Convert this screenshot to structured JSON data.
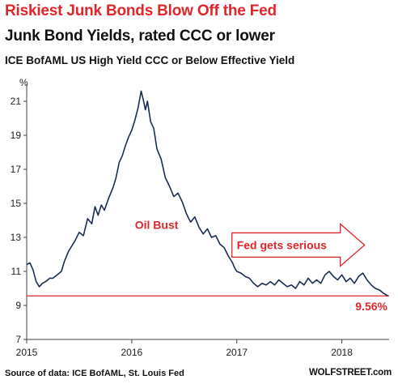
{
  "header": {
    "title": "Riskiest Junk Bonds Blow Off the Fed",
    "subtitle": "Junk Bond Yields, rated CCC or lower",
    "series_title": "ICE BofAML US High Yield CCC or Below Effective Yield"
  },
  "footer": {
    "source": "Source of data: ICE BofAML, St. Louis Fed",
    "brand": "WOLFSTREET.com"
  },
  "colors": {
    "line": "#1a2d52",
    "accent": "#e0262b",
    "axis": "#444444"
  },
  "chart_data": {
    "type": "line",
    "ylabel": "%",
    "ylim": [
      7,
      22
    ],
    "yticks": [
      7,
      9,
      11,
      13,
      15,
      17,
      19,
      21
    ],
    "xlim": [
      2015.0,
      2018.45
    ],
    "xticks": [
      {
        "value": 2015,
        "label": "2015"
      },
      {
        "value": 2016,
        "label": "2016"
      },
      {
        "value": 2017,
        "label": "2017"
      },
      {
        "value": 2018,
        "label": "2018"
      }
    ],
    "grid": false,
    "series": [
      {
        "points": [
          [
            2015.0,
            11.4
          ],
          [
            2015.03,
            11.5
          ],
          [
            2015.06,
            11.1
          ],
          [
            2015.09,
            10.4
          ],
          [
            2015.12,
            10.1
          ],
          [
            2015.15,
            10.3
          ],
          [
            2015.18,
            10.4
          ],
          [
            2015.22,
            10.6
          ],
          [
            2015.25,
            10.6
          ],
          [
            2015.29,
            10.8
          ],
          [
            2015.33,
            11.0
          ],
          [
            2015.36,
            11.6
          ],
          [
            2015.4,
            12.2
          ],
          [
            2015.43,
            12.5
          ],
          [
            2015.46,
            12.8
          ],
          [
            2015.5,
            13.3
          ],
          [
            2015.54,
            13.1
          ],
          [
            2015.58,
            14.1
          ],
          [
            2015.62,
            13.8
          ],
          [
            2015.65,
            14.8
          ],
          [
            2015.68,
            14.3
          ],
          [
            2015.71,
            14.9
          ],
          [
            2015.74,
            14.6
          ],
          [
            2015.78,
            15.3
          ],
          [
            2015.82,
            15.9
          ],
          [
            2015.85,
            16.5
          ],
          [
            2015.88,
            17.4
          ],
          [
            2015.91,
            17.8
          ],
          [
            2015.94,
            18.4
          ],
          [
            2015.97,
            18.9
          ],
          [
            2016.0,
            19.3
          ],
          [
            2016.03,
            19.9
          ],
          [
            2016.06,
            20.6
          ],
          [
            2016.09,
            21.6
          ],
          [
            2016.11,
            21.1
          ],
          [
            2016.13,
            20.5
          ],
          [
            2016.15,
            21.0
          ],
          [
            2016.18,
            19.8
          ],
          [
            2016.21,
            19.4
          ],
          [
            2016.24,
            18.2
          ],
          [
            2016.28,
            17.6
          ],
          [
            2016.32,
            16.5
          ],
          [
            2016.36,
            16.0
          ],
          [
            2016.4,
            15.4
          ],
          [
            2016.44,
            15.6
          ],
          [
            2016.48,
            15.1
          ],
          [
            2016.52,
            14.4
          ],
          [
            2016.56,
            13.9
          ],
          [
            2016.6,
            14.2
          ],
          [
            2016.64,
            13.6
          ],
          [
            2016.68,
            13.2
          ],
          [
            2016.72,
            13.5
          ],
          [
            2016.76,
            13.0
          ],
          [
            2016.8,
            13.1
          ],
          [
            2016.84,
            12.6
          ],
          [
            2016.88,
            12.4
          ],
          [
            2016.92,
            11.9
          ],
          [
            2016.96,
            11.5
          ],
          [
            2016.98,
            11.2
          ],
          [
            2017.0,
            11.0
          ],
          [
            2017.04,
            10.9
          ],
          [
            2017.08,
            10.7
          ],
          [
            2017.12,
            10.6
          ],
          [
            2017.16,
            10.3
          ],
          [
            2017.2,
            10.1
          ],
          [
            2017.24,
            10.3
          ],
          [
            2017.28,
            10.2
          ],
          [
            2017.32,
            10.4
          ],
          [
            2017.36,
            10.2
          ],
          [
            2017.4,
            10.5
          ],
          [
            2017.44,
            10.3
          ],
          [
            2017.48,
            10.1
          ],
          [
            2017.52,
            10.2
          ],
          [
            2017.56,
            10.0
          ],
          [
            2017.6,
            10.4
          ],
          [
            2017.64,
            10.2
          ],
          [
            2017.68,
            10.6
          ],
          [
            2017.72,
            10.3
          ],
          [
            2017.76,
            10.5
          ],
          [
            2017.8,
            10.3
          ],
          [
            2017.84,
            10.8
          ],
          [
            2017.88,
            11.0
          ],
          [
            2017.92,
            10.7
          ],
          [
            2017.96,
            10.5
          ],
          [
            2018.0,
            10.8
          ],
          [
            2018.04,
            10.4
          ],
          [
            2018.08,
            10.6
          ],
          [
            2018.12,
            10.3
          ],
          [
            2018.16,
            10.7
          ],
          [
            2018.2,
            10.9
          ],
          [
            2018.24,
            10.5
          ],
          [
            2018.28,
            10.2
          ],
          [
            2018.32,
            10.0
          ],
          [
            2018.36,
            9.9
          ],
          [
            2018.4,
            9.7
          ],
          [
            2018.44,
            9.56
          ]
        ]
      }
    ],
    "reference_line": {
      "y": 9.56,
      "label": "9.56%"
    },
    "annotations": [
      {
        "text": "Oil Bust",
        "x": 2016.03,
        "y": 13.75
      },
      {
        "text": "Fed gets serious",
        "x": 2017.0,
        "y": 12.55,
        "arrow": true
      }
    ]
  }
}
